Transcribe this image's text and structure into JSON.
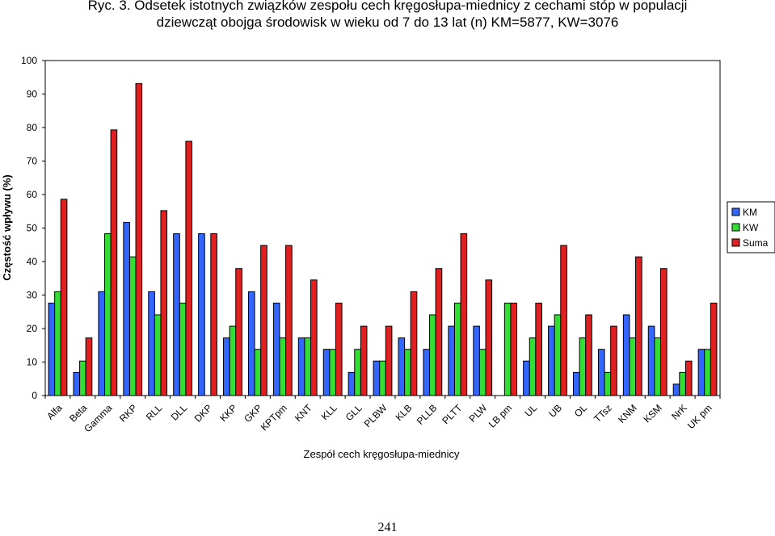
{
  "figure": {
    "title_line1": "Ryc. 3.  Odsetek istotnych związków zespołu cech kręgosłupa-miednicy z cechami stóp w populacji",
    "title_line2": "dziewcząt obojga środowisk w wieku od 7 do 13 lat  (n) KM=5877, KW=3076",
    "page_number": "241"
  },
  "chart_data": {
    "type": "bar",
    "xlabel": "Zespół cech kręgosłupa-miednicy",
    "ylabel": "Częstość wpływu (%)",
    "ylim": [
      0,
      100
    ],
    "yticks": [
      0,
      10,
      20,
      30,
      40,
      50,
      60,
      70,
      80,
      90,
      100
    ],
    "grid": false,
    "legend_position": "right",
    "categories": [
      "Alfa",
      "Beta",
      "Gamma",
      "RKP",
      "RLL",
      "DLL",
      "DKP",
      "KKP",
      "GKP",
      "KPTpm",
      "KNT",
      "KLL",
      "GLL",
      "PLBW",
      "KLB",
      "PLLB",
      "PLTT",
      "PLW",
      "LB pm",
      "UL",
      "UB",
      "OL",
      "TTsz",
      "KNM",
      "KSM",
      "NrK",
      "UK pm"
    ],
    "series": [
      {
        "name": "KM",
        "color": "#3366ff",
        "values": [
          27.6,
          6.9,
          31.0,
          51.7,
          31.0,
          48.3,
          48.3,
          17.2,
          31.0,
          27.6,
          17.2,
          13.8,
          6.9,
          10.3,
          17.2,
          13.8,
          20.7,
          20.7,
          0,
          10.3,
          20.7,
          6.9,
          13.8,
          24.1,
          20.7,
          3.4,
          13.8
        ]
      },
      {
        "name": "KW",
        "color": "#33dd33",
        "values": [
          31.0,
          10.3,
          48.3,
          41.4,
          24.1,
          27.6,
          0,
          20.7,
          13.8,
          17.2,
          17.2,
          13.8,
          13.8,
          10.3,
          13.8,
          24.1,
          27.6,
          13.8,
          27.6,
          17.2,
          24.1,
          17.2,
          6.9,
          17.2,
          17.2,
          6.9,
          13.8
        ]
      },
      {
        "name": "Suma",
        "color": "#e02020",
        "values": [
          58.6,
          17.2,
          79.3,
          93.1,
          55.2,
          75.9,
          48.3,
          37.9,
          44.8,
          44.8,
          34.5,
          27.6,
          20.7,
          20.7,
          31.0,
          37.9,
          48.3,
          34.5,
          27.6,
          27.6,
          44.8,
          24.1,
          20.7,
          41.4,
          37.9,
          10.3,
          27.6
        ]
      }
    ]
  }
}
